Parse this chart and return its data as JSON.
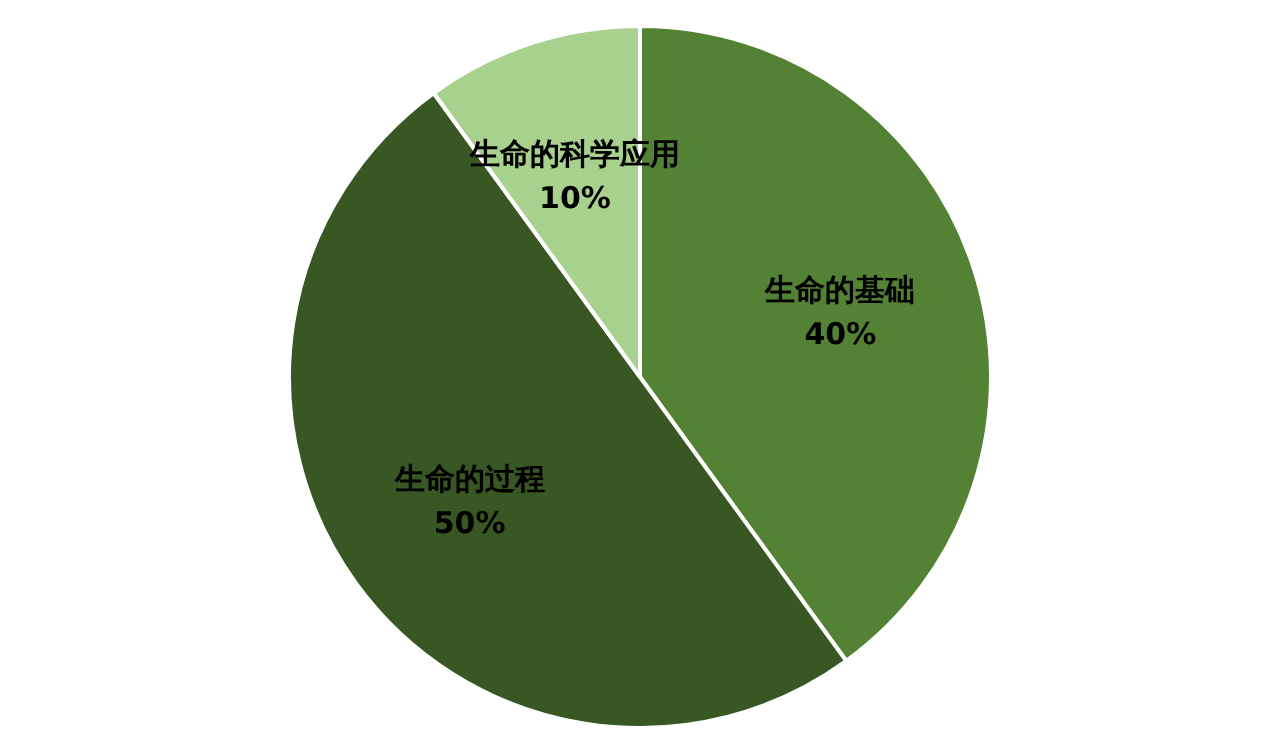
{
  "chart_data": {
    "type": "pie",
    "categories": [
      "生命的基础",
      "生命的过程",
      "生命的科学应用"
    ],
    "values": [
      40,
      50,
      10
    ],
    "colors": [
      "#548235",
      "#385723",
      "#a9d18e"
    ],
    "value_labels": [
      "40%",
      "50%",
      "10%"
    ],
    "legend": false
  }
}
